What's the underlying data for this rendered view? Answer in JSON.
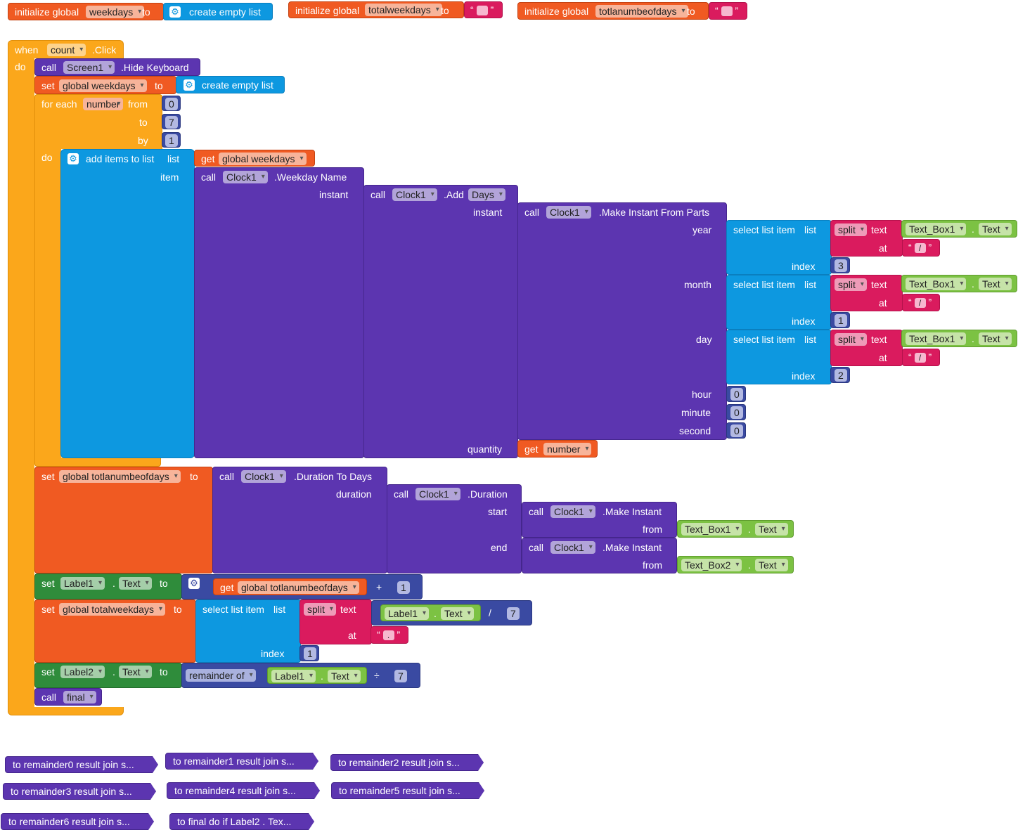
{
  "globals": [
    {
      "init": "initialize global",
      "name": "weekdays",
      "to": "to",
      "value_label": "create empty list"
    },
    {
      "init": "initialize global",
      "name": "totalweekdays",
      "to": "to",
      "value": ""
    },
    {
      "init": "initialize global",
      "name": "totlanumbeofdays",
      "to": "to",
      "value": ""
    }
  ],
  "event": {
    "when": "when",
    "component": "count",
    "event": ".Click",
    "do": "do"
  },
  "s1": {
    "call": "call",
    "component": "Screen1",
    "method": ".Hide Keyboard"
  },
  "s2": {
    "set": "set",
    "var": "global weekdays",
    "to": "to",
    "value": "create empty list"
  },
  "loop": {
    "for_each": "for each",
    "var": "number",
    "from": "from",
    "from_val": "0",
    "to": "to",
    "to_val": "7",
    "by": "by",
    "by_val": "1",
    "do": "do"
  },
  "add": {
    "label": "add items to list",
    "list": "list",
    "item": "item",
    "get": "get",
    "get_var": "global weekdays"
  },
  "weekday": {
    "call": "call",
    "component": "Clock1",
    "method": ".Weekday Name",
    "instant": "instant"
  },
  "adddays": {
    "call": "call",
    "component": "Clock1",
    "method": ".Add",
    "unit": "Days",
    "instant": "instant",
    "quantity": "quantity",
    "get": "get",
    "get_var": "number"
  },
  "makeparts": {
    "call": "call",
    "component": "Clock1",
    "method": ".Make Instant From Parts",
    "year": "year",
    "month": "month",
    "day": "day",
    "hour": "hour",
    "hour_val": "0",
    "minute": "minute",
    "minute_val": "0",
    "second": "second",
    "second_val": "0"
  },
  "sel_rows": [
    {
      "label": "select list item",
      "list": "list",
      "split": "split",
      "text": "text",
      "comp": "Text_Box1",
      "prop": "Text",
      "at": "at",
      "sep": "/",
      "index": "index",
      "idx": "3"
    },
    {
      "label": "select list item",
      "list": "list",
      "split": "split",
      "text": "text",
      "comp": "Text_Box1",
      "prop": "Text",
      "at": "at",
      "sep": "/",
      "index": "index",
      "idx": "1"
    },
    {
      "label": "select list item",
      "list": "list",
      "split": "split",
      "text": "text",
      "comp": "Text_Box1",
      "prop": "Text",
      "at": "at",
      "sep": "/",
      "index": "index",
      "idx": "2"
    }
  ],
  "s3": {
    "set": "set",
    "var": "global totlanumbeofdays",
    "to": "to",
    "call": "call",
    "component": "Clock1",
    "method": ".Duration To Days",
    "duration": "duration",
    "call2": "call",
    "component2": "Clock1",
    "method2": ".Duration",
    "start": "start",
    "end": "end",
    "mi_call": "call",
    "mi_comp": "Clock1",
    "mi_method": ".Make Instant",
    "from": "from",
    "tb1": "Text_Box1",
    "tb1_prop": "Text",
    "tb2": "Text_Box2",
    "tb2_prop": "Text"
  },
  "s4": {
    "set": "set",
    "comp": "Label1",
    "prop": "Text",
    "to": "to",
    "get": "get",
    "get_var": "global totlanumbeofdays",
    "op": "+",
    "val": "1"
  },
  "s5": {
    "set": "set",
    "var": "global totalweekdays",
    "to": "to",
    "label": "select list item",
    "list": "list",
    "split": "split",
    "text": "text",
    "comp": "Label1",
    "prop": "Text",
    "op": "/",
    "val": "7",
    "at": "at",
    "sep": ".",
    "index": "index",
    "idx": "1"
  },
  "s6": {
    "set": "set",
    "comp": "Label2",
    "prop": "Text",
    "to": "to",
    "rem": "remainder of",
    "comp2": "Label1",
    "prop2": "Text",
    "op": "÷",
    "val": "7"
  },
  "s7": {
    "call": "call",
    "proc": "final"
  },
  "collapsed": [
    "to remainder0 result join s...",
    "to remainder1 result join s...",
    "to remainder2 result join s...",
    "to remainder3 result join s...",
    "to remainder4 result join s...",
    "to remainder5 result join s...",
    "to remainder6 result join s...",
    "to final do if Label2 . Tex..."
  ]
}
